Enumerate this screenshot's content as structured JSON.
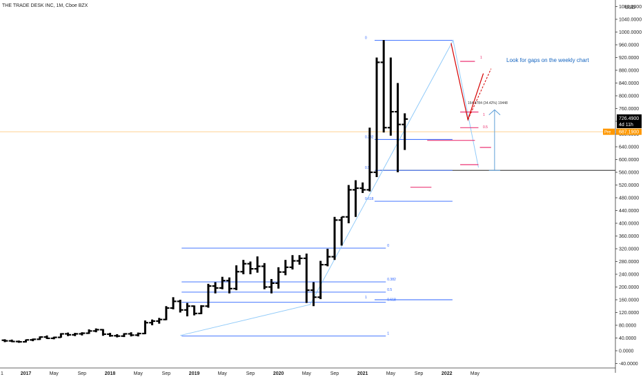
{
  "header": {
    "title": "THE TRADE DESK INC, 1M, Cboe BZX",
    "currency": "USD"
  },
  "chart_data": {
    "type": "ohlc",
    "title": "THE TRADE DESK INC, 1M, Cboe BZX",
    "ylim": [
      -40,
      1100
    ],
    "y_ticks": [
      "-40.0000",
      "0.0000",
      "40.0000",
      "80.0000",
      "120.0000",
      "160.0000",
      "200.0000",
      "240.0000",
      "280.0000",
      "320.0000",
      "360.0000",
      "400.0000",
      "440.0000",
      "480.0000",
      "520.0000",
      "560.0000",
      "600.0000",
      "640.0000",
      "680.0000",
      "720.0000",
      "760.0000",
      "800.0000",
      "840.0000",
      "880.0000",
      "920.0000",
      "960.0000",
      "1000.0000",
      "1040.0000",
      "1080.0000"
    ],
    "x_ticks": [
      {
        "label": "1",
        "bold": false,
        "i": 0
      },
      {
        "label": "2017",
        "bold": true,
        "i": 3
      },
      {
        "label": "May",
        "bold": false,
        "i": 7
      },
      {
        "label": "Sep",
        "bold": false,
        "i": 11
      },
      {
        "label": "2018",
        "bold": true,
        "i": 15
      },
      {
        "label": "May",
        "bold": false,
        "i": 19
      },
      {
        "label": "Sep",
        "bold": false,
        "i": 23
      },
      {
        "label": "2019",
        "bold": true,
        "i": 27
      },
      {
        "label": "May",
        "bold": false,
        "i": 31
      },
      {
        "label": "Sep",
        "bold": false,
        "i": 35
      },
      {
        "label": "2020",
        "bold": true,
        "i": 39
      },
      {
        "label": "May",
        "bold": false,
        "i": 43
      },
      {
        "label": "Sep",
        "bold": false,
        "i": 47
      },
      {
        "label": "2021",
        "bold": true,
        "i": 51
      },
      {
        "label": "May",
        "bold": false,
        "i": 55
      },
      {
        "label": "Sep",
        "bold": false,
        "i": 59
      },
      {
        "label": "2022",
        "bold": true,
        "i": 63
      },
      {
        "label": "May",
        "bold": false,
        "i": 67
      }
    ],
    "ohlc": [
      [
        33,
        36,
        27,
        31
      ],
      [
        31,
        35,
        27,
        29
      ],
      [
        29,
        32,
        25,
        28
      ],
      [
        28,
        35,
        26,
        34
      ],
      [
        34,
        38,
        30,
        36
      ],
      [
        36,
        45,
        34,
        43
      ],
      [
        43,
        48,
        37,
        39
      ],
      [
        39,
        44,
        36,
        42
      ],
      [
        42,
        55,
        41,
        53
      ],
      [
        53,
        57,
        46,
        50
      ],
      [
        50,
        56,
        46,
        53
      ],
      [
        53,
        58,
        48,
        55
      ],
      [
        55,
        67,
        53,
        62
      ],
      [
        62,
        70,
        58,
        66
      ],
      [
        66,
        68,
        47,
        52
      ],
      [
        52,
        56,
        44,
        47
      ],
      [
        47,
        52,
        42,
        46
      ],
      [
        46,
        55,
        43,
        53
      ],
      [
        53,
        58,
        45,
        49
      ],
      [
        49,
        57,
        45,
        54
      ],
      [
        54,
        95,
        52,
        88
      ],
      [
        88,
        98,
        80,
        93
      ],
      [
        93,
        103,
        85,
        98
      ],
      [
        98,
        140,
        96,
        134
      ],
      [
        134,
        168,
        130,
        155
      ],
      [
        155,
        160,
        120,
        128
      ],
      [
        128,
        150,
        108,
        140
      ],
      [
        140,
        142,
        111,
        117
      ],
      [
        117,
        143,
        115,
        140
      ],
      [
        140,
        210,
        135,
        203
      ],
      [
        203,
        215,
        180,
        197
      ],
      [
        197,
        232,
        193,
        220
      ],
      [
        220,
        230,
        180,
        195
      ],
      [
        195,
        268,
        190,
        248
      ],
      [
        248,
        285,
        240,
        273
      ],
      [
        273,
        280,
        240,
        257
      ],
      [
        257,
        296,
        245,
        265
      ],
      [
        265,
        275,
        193,
        200
      ],
      [
        200,
        225,
        180,
        212
      ],
      [
        212,
        262,
        195,
        247
      ],
      [
        247,
        285,
        237,
        262
      ],
      [
        262,
        300,
        255,
        282
      ],
      [
        282,
        300,
        270,
        290
      ],
      [
        290,
        305,
        150,
        190
      ],
      [
        190,
        215,
        140,
        168
      ],
      [
        168,
        282,
        162,
        270
      ],
      [
        270,
        320,
        265,
        295
      ],
      [
        295,
        420,
        285,
        410
      ],
      [
        410,
        420,
        330,
        420
      ],
      [
        420,
        520,
        400,
        505
      ],
      [
        505,
        535,
        420,
        510
      ],
      [
        510,
        528,
        495,
        505
      ],
      [
        505,
        700,
        500,
        560
      ],
      [
        560,
        920,
        545,
        905
      ],
      [
        905,
        975,
        685,
        700
      ],
      [
        700,
        920,
        675,
        750
      ],
      [
        750,
        840,
        560,
        710
      ],
      [
        710,
        745,
        630,
        727
      ]
    ],
    "price_labels": {
      "current": "726.4900",
      "countdown": "4d 11h",
      "pre_tag": "Pre",
      "pre_value": "687.1900"
    },
    "fib_left": [
      {
        "label": "0",
        "value": 322
      },
      {
        "label": "0.382",
        "value": 216
      },
      {
        "label": "0.5",
        "value": 184
      },
      {
        "label": "0.618",
        "value": 152
      },
      {
        "label": "1",
        "value": 46
      }
    ],
    "fib_right": [
      {
        "label": "0",
        "value": 974
      },
      {
        "label": "0.382",
        "value": 663
      },
      {
        "label": "0.5",
        "value": 566
      },
      {
        "label": "0.618",
        "value": 469
      },
      {
        "label": "1",
        "value": 160
      }
    ],
    "annotations": {
      "note": "Look for gaps on the weekly chart",
      "measure": "164.4784 (34.42%) 19448",
      "mark_1a": "1",
      "mark_1b": "1",
      "mark_0_5": "0.5"
    },
    "colors": {
      "bars": "#000000",
      "fib": "#2962ff",
      "gap": "#e91e63",
      "trend": "#d50000",
      "path": "#90caf9",
      "pre_line": "#ffcc80",
      "pre_tag": "#ff9800"
    }
  }
}
